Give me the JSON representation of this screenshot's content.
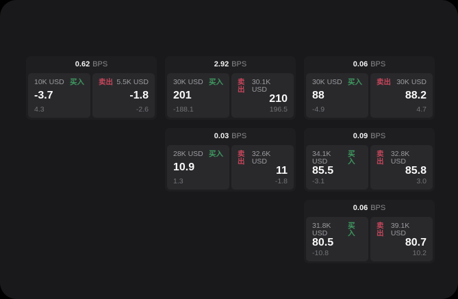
{
  "labels": {
    "bps_unit": "BPS",
    "buy": "买入",
    "sell": "卖出"
  },
  "colors": {
    "background": "#000000",
    "surface": "#19191b",
    "card": "#1e1e20",
    "panel": "#29292c",
    "buy_green": "#3f975f",
    "sell_red": "#c4465a",
    "text_primary": "#fafafa",
    "text_muted": "#9b9c9f",
    "text_faint": "#737477"
  },
  "cards": [
    {
      "bps": "0.62",
      "buy": {
        "amount": "10K USD",
        "price": "-3.7",
        "delta": "4.3"
      },
      "sell": {
        "amount": "5.5K USD",
        "price": "-1.8",
        "delta": "-2.6"
      }
    },
    {
      "bps": "2.92",
      "buy": {
        "amount": "30K USD",
        "price": "201",
        "delta": "-188.1"
      },
      "sell": {
        "amount": "30.1K USD",
        "price": "210",
        "delta": "196.5"
      }
    },
    {
      "bps": "0.06",
      "buy": {
        "amount": "30K USD",
        "price": "88",
        "delta": "-4.9"
      },
      "sell": {
        "amount": "30K USD",
        "price": "88.2",
        "delta": "4.7"
      }
    },
    {
      "bps": "0.03",
      "buy": {
        "amount": "28K USD",
        "price": "10.9",
        "delta": "1.3"
      },
      "sell": {
        "amount": "32.6K USD",
        "price": "11",
        "delta": "-1.8"
      }
    },
    {
      "bps": "0.09",
      "buy": {
        "amount": "34.1K USD",
        "price": "85.5",
        "delta": "-3.1"
      },
      "sell": {
        "amount": "32.8K USD",
        "price": "85.8",
        "delta": "3.0"
      }
    },
    {
      "bps": "0.06",
      "buy": {
        "amount": "31.8K USD",
        "price": "80.5",
        "delta": "-10.8"
      },
      "sell": {
        "amount": "39.1K USD",
        "price": "80.7",
        "delta": "10.2"
      }
    }
  ]
}
